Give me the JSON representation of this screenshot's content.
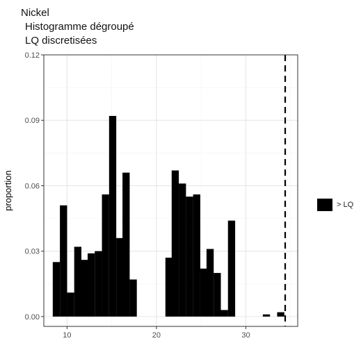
{
  "title": {
    "line1": "Nickel",
    "line2": "Histogramme dégroupé",
    "line3": "LQ discretisées"
  },
  "chart_data": {
    "type": "bar",
    "title": "Nickel\nHistogramme dégroupé\nLQ discretisées",
    "xlabel": "",
    "ylabel": "proportion",
    "xlim": [
      7.4,
      35.8
    ],
    "ylim": [
      -0.0045,
      0.12
    ],
    "x_ticks": [
      10,
      20,
      30
    ],
    "y_ticks": [
      0.0,
      0.03,
      0.06,
      0.09,
      0.12
    ],
    "y_tick_labels": [
      "0.00",
      "0.03",
      "0.06",
      "0.09",
      "0.12"
    ],
    "grid": true,
    "theme": "bw",
    "bin_width": 0.78,
    "bars": [
      {
        "x": 8.4,
        "y": 0.025
      },
      {
        "x": 9.2,
        "y": 0.051
      },
      {
        "x": 10.0,
        "y": 0.011
      },
      {
        "x": 10.8,
        "y": 0.032
      },
      {
        "x": 11.6,
        "y": 0.026
      },
      {
        "x": 12.3,
        "y": 0.029
      },
      {
        "x": 13.1,
        "y": 0.03
      },
      {
        "x": 13.9,
        "y": 0.056
      },
      {
        "x": 14.7,
        "y": 0.092
      },
      {
        "x": 15.5,
        "y": 0.036
      },
      {
        "x": 16.2,
        "y": 0.066
      },
      {
        "x": 17.0,
        "y": 0.017
      },
      {
        "x": 21.0,
        "y": 0.027
      },
      {
        "x": 21.7,
        "y": 0.067
      },
      {
        "x": 22.5,
        "y": 0.061
      },
      {
        "x": 23.3,
        "y": 0.055
      },
      {
        "x": 24.1,
        "y": 0.056
      },
      {
        "x": 24.9,
        "y": 0.022
      },
      {
        "x": 25.6,
        "y": 0.031
      },
      {
        "x": 26.4,
        "y": 0.02
      },
      {
        "x": 27.2,
        "y": 0.003
      },
      {
        "x": 28.0,
        "y": 0.044
      },
      {
        "x": 31.9,
        "y": 0.001
      },
      {
        "x": 33.5,
        "y": 0.002
      }
    ],
    "reference_line": {
      "x": 34.4,
      "style": "dashed",
      "color": "#000000"
    },
    "legend": {
      "position": "right",
      "entries": [
        {
          "label": "> LQ",
          "color": "#000000"
        }
      ]
    },
    "colors": {
      "bar": "#000000",
      "grid_major": "#e6e6e6",
      "grid_minor": "#f3f3f3",
      "panel_border": "#333333",
      "tick_text": "#4d4d4d"
    }
  }
}
